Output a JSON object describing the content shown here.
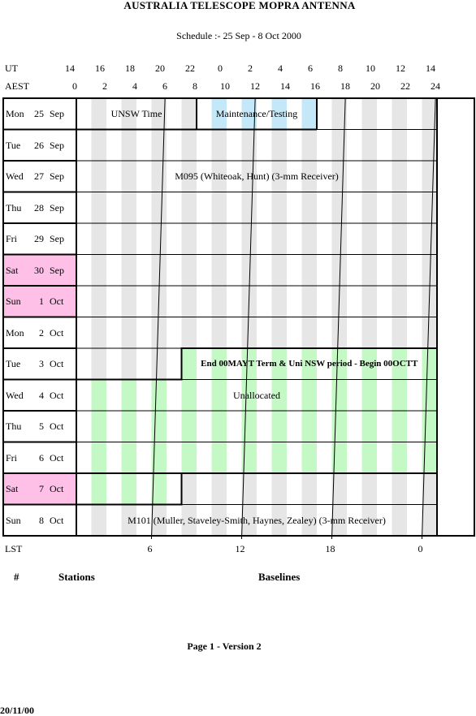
{
  "header": {
    "title": "AUSTRALIA TELESCOPE MOPRA ANTENNA",
    "subtitle": "Schedule :- 25 Sep - 8 Oct  2000"
  },
  "axes": {
    "ut_label": "UT",
    "aest_label": "AEST",
    "lst_label": "LST",
    "ut_ticks": [
      "14",
      "16",
      "18",
      "20",
      "22",
      "0",
      "2",
      "4",
      "6",
      "8",
      "10",
      "12",
      "14"
    ],
    "aest_ticks": [
      "0",
      "2",
      "4",
      "6",
      "8",
      "10",
      "12",
      "14",
      "16",
      "18",
      "20",
      "22",
      "24"
    ],
    "lst_ticks": [
      {
        "label": "6",
        "aest": 5.0
      },
      {
        "label": "12",
        "aest": 11.0
      },
      {
        "label": "18",
        "aest": 17.0
      },
      {
        "label": "0",
        "aest": 23.0
      }
    ],
    "lst_line_aest": [
      {
        "top": 5.9,
        "bottom": 5.0
      },
      {
        "top": 11.9,
        "bottom": 11.0
      },
      {
        "top": 17.9,
        "bottom": 17.0
      },
      {
        "top": 23.9,
        "bottom": 23.0
      }
    ]
  },
  "days": [
    {
      "day": "Mon",
      "date": "25",
      "month": "Sep",
      "weekend": false
    },
    {
      "day": "Tue",
      "date": "26",
      "month": "Sep",
      "weekend": false
    },
    {
      "day": "Wed",
      "date": "27",
      "month": "Sep",
      "weekend": false
    },
    {
      "day": "Thu",
      "date": "28",
      "month": "Sep",
      "weekend": false
    },
    {
      "day": "Fri",
      "date": "29",
      "month": "Sep",
      "weekend": false
    },
    {
      "day": "Sat",
      "date": "30",
      "month": "Sep",
      "weekend": true
    },
    {
      "day": "Sun",
      "date": "1",
      "month": "Oct",
      "weekend": true
    },
    {
      "day": "Mon",
      "date": "2",
      "month": "Oct",
      "weekend": false
    },
    {
      "day": "Tue",
      "date": "3",
      "month": "Oct",
      "weekend": false
    },
    {
      "day": "Wed",
      "date": "4",
      "month": "Oct",
      "weekend": false
    },
    {
      "day": "Thu",
      "date": "5",
      "month": "Oct",
      "weekend": false
    },
    {
      "day": "Fri",
      "date": "6",
      "month": "Oct",
      "weekend": false
    },
    {
      "day": "Sat",
      "date": "7",
      "month": "Oct",
      "weekend": true
    },
    {
      "day": "Sun",
      "date": "8",
      "month": "Oct",
      "weekend": false
    }
  ],
  "blocks": [
    {
      "label": "UNSW Time",
      "row_start": 0,
      "row_end": 0,
      "aest_start": 0,
      "aest_end": 8,
      "label_aest": 4,
      "label_row": 0
    },
    {
      "label": "Maintenance/Testing",
      "row_start": 0,
      "row_end": 0,
      "aest_start": 8,
      "aest_end": 16,
      "label_aest": 12,
      "label_row": 0
    },
    {
      "label": "M095 (Whiteoak, Hunt) (3-mm Receiver)",
      "row_start": 0,
      "row_end": 8,
      "aest_start": 16,
      "aest_end": 7,
      "label_aest": 12,
      "label_row": 2
    },
    {
      "label": "End 00MAYT Term & Uni NSW period - Begin 00OCTT",
      "row_start": 8,
      "row_end": 8,
      "aest_start": 7,
      "aest_end": 24,
      "label_aest": 15.5,
      "label_row": 8
    },
    {
      "label": "Unallocated",
      "row_start": 8,
      "row_end": 12,
      "aest_start": 7,
      "aest_end": 7,
      "label_aest": 12,
      "label_row": 9
    },
    {
      "label": "M101 (Muller, Staveley-Smith, Haynes, Zealey) (3-mm Receiver)",
      "row_start": 12,
      "row_end": 13,
      "aest_start": 7,
      "aest_end": 24,
      "label_aest": 12,
      "label_row": 13
    }
  ],
  "colors": {
    "weekend": "#ffc0e8",
    "stripe_grey": "#e6e6e6",
    "maintenance": "#c4e8f8",
    "unallocated": "#c4f8c4"
  },
  "footer": {
    "hash": "#",
    "stations": "Stations",
    "baselines": "Baselines",
    "page": "Page 1 - Version 2",
    "date": "20/11/00"
  }
}
